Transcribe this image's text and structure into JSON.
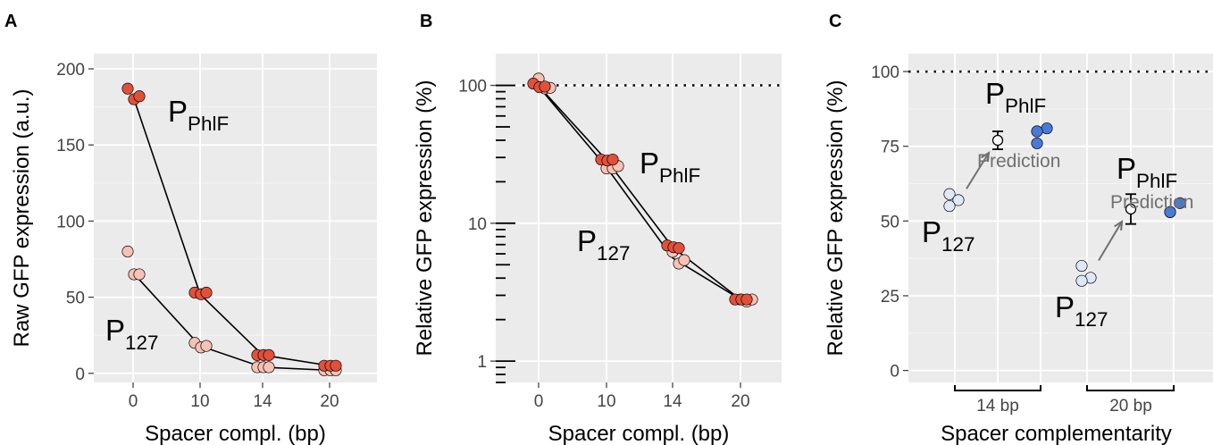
{
  "chart_data": [
    {
      "type": "scatter",
      "panel_label": "A",
      "ylabel": "Raw GFP expression (a.u.)",
      "xlabel": "Spacer compl. (bp)",
      "categories": [
        "0",
        "10",
        "14",
        "20"
      ],
      "yticks": [
        0,
        50,
        100,
        150,
        200
      ],
      "ytick_labels": [
        "0",
        "50",
        "100",
        "150",
        "200"
      ],
      "ylim": [
        -6,
        210
      ],
      "y_scale": "linear",
      "grid": true,
      "series": [
        {
          "label": "P",
          "label_sub": "PhlF",
          "color": "#e3503a",
          "points": [
            [
              0,
              187
            ],
            [
              0,
              180
            ],
            [
              0,
              182
            ],
            [
              10,
              53
            ],
            [
              10,
              52
            ],
            [
              10,
              53
            ],
            [
              14,
              12
            ],
            [
              14,
              12
            ],
            [
              14,
              12
            ],
            [
              20,
              5
            ],
            [
              20,
              5
            ],
            [
              20,
              5
            ]
          ],
          "line": [
            [
              0,
              182
            ],
            [
              10,
              52
            ],
            [
              14,
              12
            ],
            [
              20,
              5
            ]
          ]
        },
        {
          "label": "P",
          "label_sub": "127",
          "color": "#f7c1b4",
          "points": [
            [
              0,
              80
            ],
            [
              0,
              65
            ],
            [
              0,
              65
            ],
            [
              10,
              20
            ],
            [
              10,
              17
            ],
            [
              10,
              18
            ],
            [
              14,
              4
            ],
            [
              14,
              4
            ],
            [
              14,
              4
            ],
            [
              20,
              2
            ],
            [
              20,
              2
            ],
            [
              20,
              2
            ]
          ],
          "line": [
            [
              0,
              66
            ],
            [
              10,
              18
            ],
            [
              14,
              4
            ],
            [
              20,
              2
            ]
          ]
        }
      ]
    },
    {
      "type": "scatter",
      "panel_label": "B",
      "ylabel": "Relative GFP expression (%)",
      "xlabel": "Spacer compl. (bp)",
      "categories": [
        "0",
        "10",
        "14",
        "20"
      ],
      "yticks": [
        1,
        10,
        100
      ],
      "ytick_labels": [
        "1",
        "10",
        "100"
      ],
      "ylim": [
        0.7,
        170
      ],
      "y_scale": "log",
      "grid": true,
      "reference_line": 100,
      "series": [
        {
          "label": "P",
          "label_sub": "PhlF",
          "color": "#e3503a",
          "points": [
            [
              0,
              103
            ],
            [
              0,
              97
            ],
            [
              0,
              98
            ],
            [
              10,
              29
            ],
            [
              10,
              28.5
            ],
            [
              10,
              29
            ],
            [
              14,
              6.9
            ],
            [
              14,
              6.7
            ],
            [
              14,
              6.6
            ],
            [
              20,
              2.8
            ],
            [
              20,
              2.8
            ],
            [
              20,
              2.8
            ]
          ],
          "line": [
            [
              0,
              99
            ],
            [
              10,
              28.7
            ],
            [
              14,
              6.7
            ],
            [
              20,
              2.8
            ]
          ]
        },
        {
          "label": "P",
          "label_sub": "127",
          "color": "#f7c1b4",
          "points": [
            [
              0,
              112
            ],
            [
              0,
              95
            ],
            [
              0,
              96
            ],
            [
              10,
              25
            ],
            [
              10,
              25
            ],
            [
              10,
              26
            ],
            [
              14,
              6.2
            ],
            [
              14,
              5.1
            ],
            [
              14,
              5.4
            ],
            [
              20,
              2.8
            ],
            [
              20,
              2.7
            ],
            [
              20,
              2.8
            ]
          ],
          "line": [
            [
              0,
              98
            ],
            [
              10,
              25.5
            ],
            [
              14,
              5.6
            ],
            [
              20,
              2.8
            ]
          ]
        }
      ]
    },
    {
      "type": "scatter",
      "panel_label": "C",
      "ylabel": "Relative GFP expression (%)",
      "xlabel": "Spacer complementarity",
      "yticks": [
        0,
        25,
        50,
        75,
        100
      ],
      "ytick_labels": [
        "0",
        "25",
        "50",
        "75",
        "100"
      ],
      "ylim": [
        -4,
        106
      ],
      "y_scale": "linear",
      "grid": true,
      "reference_line": 100,
      "groups": [
        {
          "name": "14 bp",
          "p127": {
            "label": "P",
            "label_sub": "127",
            "color": "#dee8f6",
            "values": [
              59,
              57,
              55
            ]
          },
          "prediction": {
            "label": "Prediction",
            "mean": 77,
            "low": 74,
            "high": 80
          },
          "phlf": {
            "label": "P",
            "label_sub": "PhlF",
            "color": "#4a7ad8",
            "values": [
              81,
              80,
              76
            ]
          }
        },
        {
          "name": "20 bp",
          "p127": {
            "label": "P",
            "label_sub": "127",
            "color": "#dee8f6",
            "values": [
              35,
              31,
              30
            ]
          },
          "prediction": {
            "label": "Prediction",
            "mean": 54,
            "low": 49,
            "high": 59
          },
          "phlf": {
            "label": "P",
            "label_sub": "PhlF",
            "color": "#4a7ad8",
            "values": [
              56,
              53,
              53
            ]
          }
        }
      ]
    }
  ]
}
